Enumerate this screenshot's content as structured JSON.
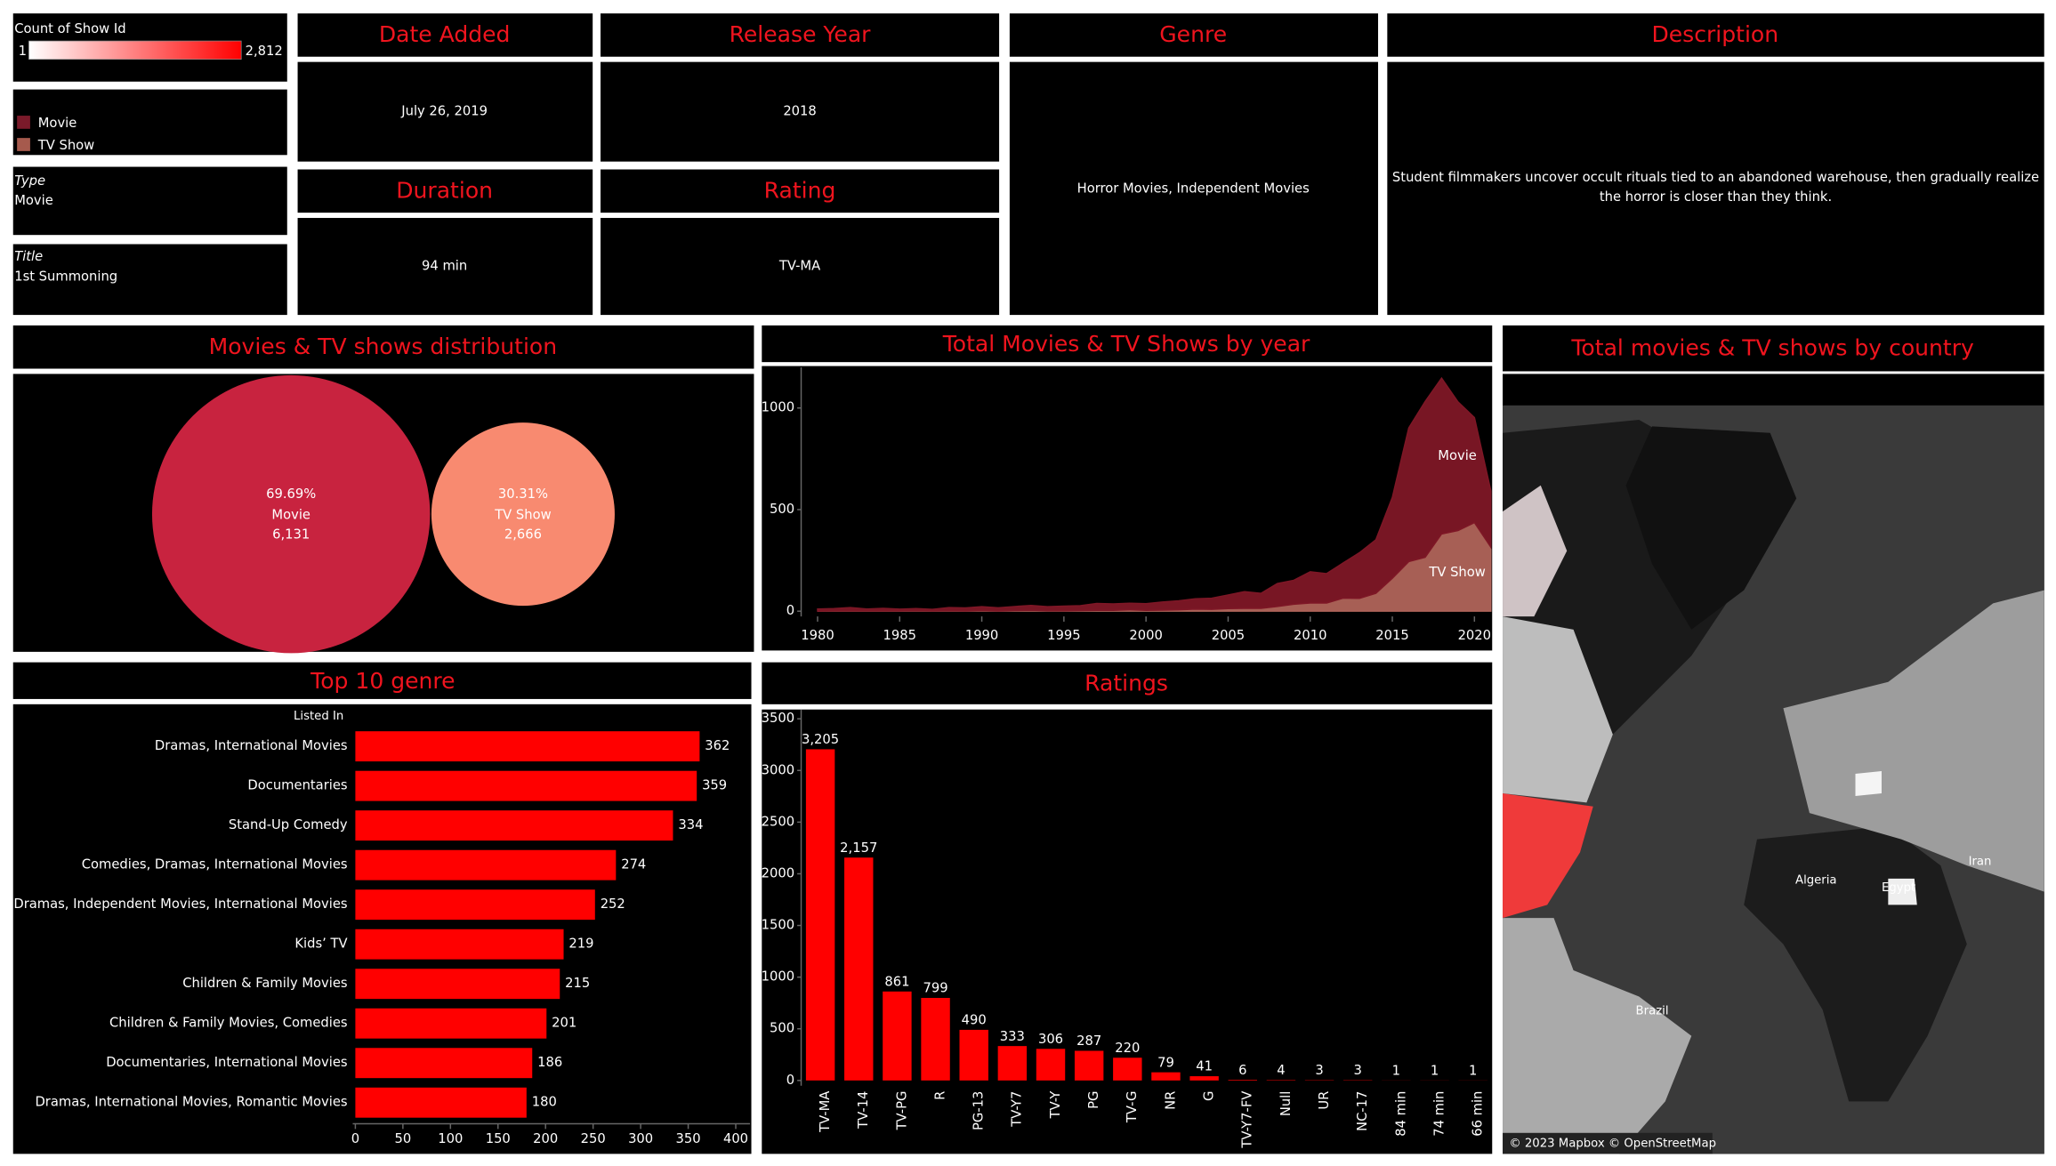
{
  "filters": [
    {
      "label": "Type",
      "value": "Movie"
    },
    {
      "label": "Title",
      "value": "1st Summoning"
    }
  ],
  "cards": [
    {
      "title": "Date Added",
      "value": "July 26, 2019"
    },
    {
      "title": "Release Year",
      "value": "2018"
    },
    {
      "title": "Duration",
      "value": "94 min"
    },
    {
      "title": "Rating",
      "value": "TV-MA"
    },
    {
      "title": "Genre",
      "value": "Horror Movies, Independent Movies"
    },
    {
      "title": "Description",
      "value": "Student filmmakers uncover occult rituals tied to an abandoned warehouse, then gradually realize the horror is closer than they think."
    }
  ],
  "chart_data": [
    {
      "type": "bubble",
      "title": "Movies & TV shows distribution",
      "categories": [
        "Movie",
        "TV Show"
      ],
      "values": [
        6131,
        2666
      ],
      "value_labels": [
        "6,131",
        "2,666"
      ],
      "percentages": [
        69.69,
        30.31
      ],
      "percentage_labels": [
        "69.69%",
        "30.31%"
      ],
      "colors": [
        "#c8233f",
        "#f88a70"
      ]
    },
    {
      "type": "area",
      "stacked": true,
      "title": "Total Movies & TV Shows by year",
      "x": [
        1980,
        1981,
        1982,
        1983,
        1984,
        1985,
        1986,
        1987,
        1988,
        1989,
        1990,
        1991,
        1992,
        1993,
        1994,
        1995,
        1996,
        1997,
        1998,
        1999,
        2000,
        2001,
        2002,
        2003,
        2004,
        2005,
        2006,
        2007,
        2008,
        2009,
        2010,
        2011,
        2012,
        2013,
        2014,
        2015,
        2016,
        2017,
        2018,
        2019,
        2020,
        2021
      ],
      "series": [
        {
          "name": "Movie",
          "color": "#7e1726",
          "values": [
            11,
            12,
            17,
            10,
            13,
            9,
            11,
            8,
            16,
            15,
            19,
            16,
            20,
            24,
            20,
            23,
            24,
            34,
            32,
            32,
            33,
            40,
            44,
            51,
            55,
            67,
            82,
            74,
            113,
            118,
            154,
            145,
            173,
            225,
            264,
            398,
            658,
            767,
            767,
            633,
            517,
            277
          ]
        },
        {
          "name": "TV Show",
          "color": "#b0645a",
          "values": [
            0,
            1,
            1,
            1,
            1,
            1,
            2,
            1,
            2,
            1,
            3,
            1,
            3,
            4,
            2,
            2,
            3,
            4,
            4,
            7,
            4,
            5,
            7,
            10,
            9,
            13,
            14,
            14,
            23,
            34,
            40,
            40,
            64,
            63,
            88,
            162,
            244,
            265,
            380,
            397,
            436,
            315
          ]
        }
      ],
      "xlim": [
        1979,
        2021
      ],
      "ylim": [
        0,
        1200
      ],
      "xticks": [
        1980,
        1985,
        1990,
        1995,
        2000,
        2005,
        2010,
        2015,
        2020
      ],
      "yticks": [
        0,
        500,
        1000
      ]
    },
    {
      "type": "hbar",
      "title": "Top 10 genre",
      "axis_label": "Listed In",
      "categories": [
        "Dramas, International Movies",
        "Documentaries",
        "Stand-Up Comedy",
        "Comedies, Dramas, International Movies",
        "Dramas, Independent Movies, International Movies",
        "Kids’ TV",
        "Children & Family Movies",
        "Children & Family Movies, Comedies",
        "Documentaries, International Movies",
        "Dramas, International Movies, Romantic Movies"
      ],
      "values": [
        362,
        359,
        334,
        274,
        252,
        219,
        215,
        201,
        186,
        180
      ],
      "color": "#ff0000",
      "xlim": [
        0,
        415
      ],
      "xticks": [
        0,
        50,
        100,
        150,
        200,
        250,
        300,
        350,
        400
      ]
    },
    {
      "type": "bar",
      "title": "Ratings",
      "categories": [
        "TV-MA",
        "TV-14",
        "TV-PG",
        "R",
        "PG-13",
        "TV-Y7",
        "TV-Y",
        "PG",
        "TV-G",
        "NR",
        "G",
        "TV-Y7-FV",
        "Null",
        "UR",
        "NC-17",
        "84 min",
        "74 min",
        "66 min"
      ],
      "values": [
        3205,
        2157,
        861,
        799,
        490,
        333,
        306,
        287,
        220,
        79,
        41,
        6,
        4,
        3,
        3,
        1,
        1,
        1
      ],
      "value_labels": [
        "3,205",
        "2,157",
        "861",
        "799",
        "490",
        "333",
        "306",
        "287",
        "220",
        "79",
        "41",
        "6",
        "4",
        "3",
        "3",
        "1",
        "1",
        "1"
      ],
      "color": "#ff0000",
      "ylim": [
        0,
        3590
      ],
      "yticks": [
        0,
        500,
        1000,
        1500,
        2000,
        2500,
        3000,
        3500
      ]
    },
    {
      "type": "map",
      "title": "Total movies & TV shows by country",
      "color_legend": {
        "title": "Count of Show Id",
        "ticks": [
          1,
          {
            "value": 2812,
            "label": "2,812"
          }
        ]
      },
      "labels": [
        "Algeria",
        "Iran",
        "Egypt",
        "Brazil"
      ],
      "attribution": "© 2023 Mapbox © OpenStreetMap"
    }
  ]
}
